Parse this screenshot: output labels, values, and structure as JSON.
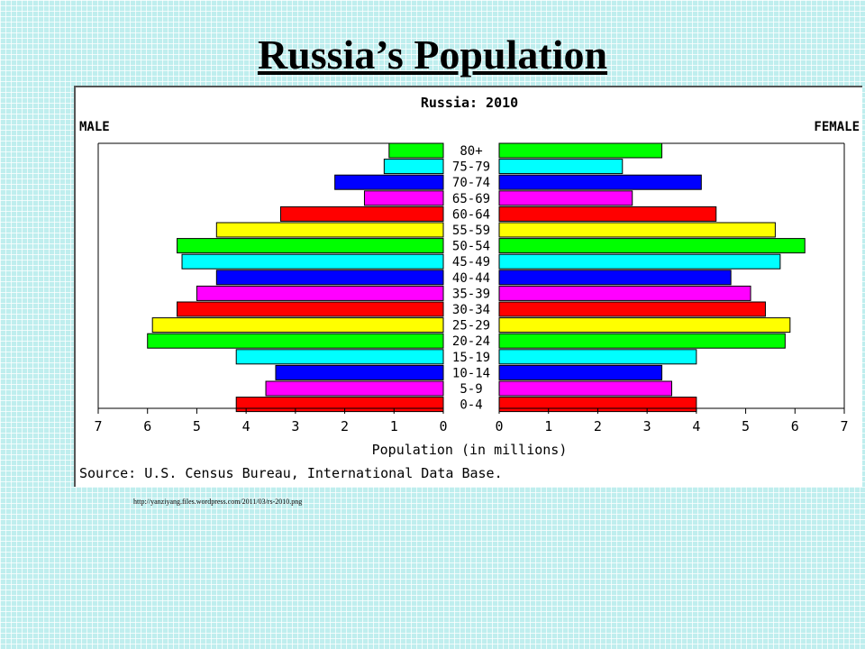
{
  "slide": {
    "title": "Russia’s Population",
    "source_url": "http://yanziyang.files.wordpress.com/2011/03/rs-2010.png"
  },
  "chart_data": {
    "type": "bar",
    "orientation": "horizontal-population-pyramid",
    "title": "Russia: 2010",
    "left_label": "MALE",
    "right_label": "FEMALE",
    "xlabel": "Population (in millions)",
    "source": "Source: U.S. Census Bureau, International Data Base.",
    "xlim": [
      0,
      7
    ],
    "ticks": [
      "7",
      "6",
      "5",
      "4",
      "3",
      "2",
      "1",
      "0",
      "0",
      "1",
      "2",
      "3",
      "4",
      "5",
      "6",
      "7"
    ],
    "categories": [
      "80+",
      "75-79",
      "70-74",
      "65-69",
      "60-64",
      "55-59",
      "50-54",
      "45-49",
      "40-44",
      "35-39",
      "30-34",
      "25-29",
      "20-24",
      "15-19",
      "10-14",
      "5-9",
      "0-4"
    ],
    "colors": [
      "#00ff00",
      "#00ffff",
      "#0000ff",
      "#ff00ff",
      "#ff0000",
      "#ffff00",
      "#00ff00",
      "#00ffff",
      "#0000ff",
      "#ff00ff",
      "#ff0000",
      "#ffff00",
      "#00ff00",
      "#00ffff",
      "#0000ff",
      "#ff00ff",
      "#ff0000"
    ],
    "series": [
      {
        "name": "MALE",
        "values": [
          1.1,
          1.2,
          2.2,
          1.6,
          3.3,
          4.6,
          5.4,
          5.3,
          4.6,
          5.0,
          5.4,
          5.9,
          6.0,
          4.2,
          3.4,
          3.6,
          4.2
        ]
      },
      {
        "name": "FEMALE",
        "values": [
          3.3,
          2.5,
          4.1,
          2.7,
          4.4,
          5.6,
          6.2,
          5.7,
          4.7,
          5.1,
          5.4,
          5.9,
          5.8,
          4.0,
          3.3,
          3.5,
          4.0
        ]
      }
    ],
    "grid": false
  }
}
